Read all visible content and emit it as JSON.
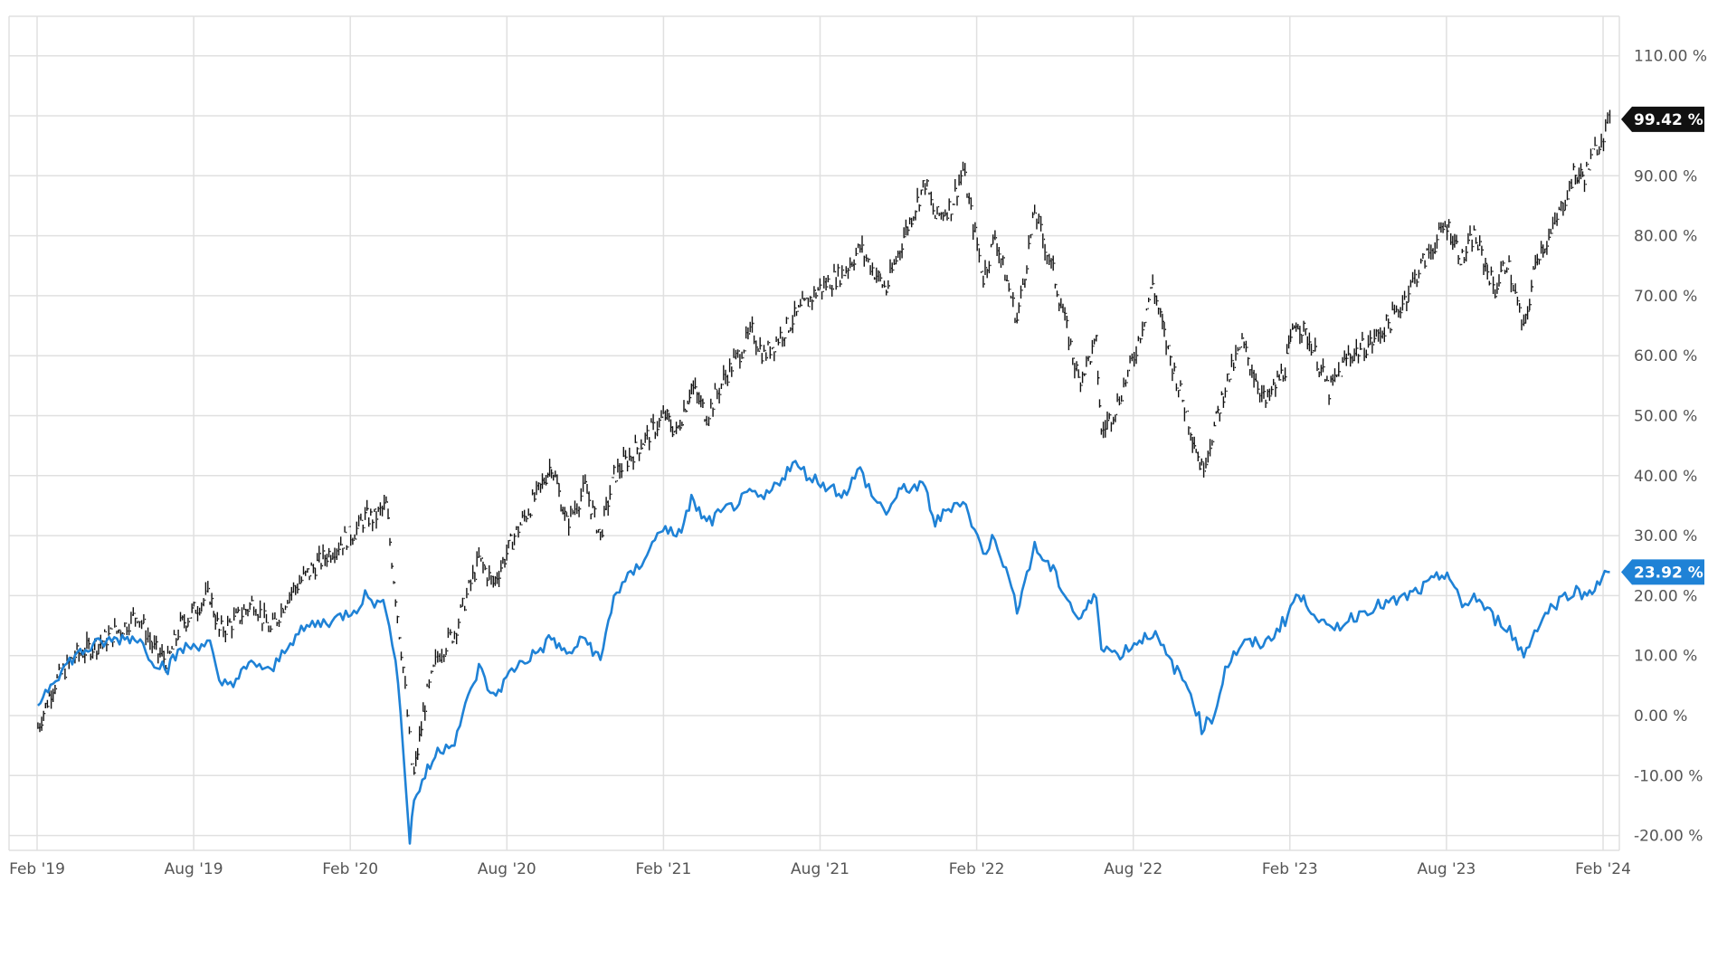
{
  "chart_data": {
    "type": "line",
    "x_ticks": [
      "Feb '19",
      "Aug '19",
      "Feb '20",
      "Aug '20",
      "Feb '21",
      "Aug '21",
      "Feb '22",
      "Aug '22",
      "Feb '23",
      "Aug '23",
      "Feb '24"
    ],
    "y_ticks": [
      "110.00 %",
      "90.00 %",
      "80.00 %",
      "70.00 %",
      "60.00 %",
      "50.00 %",
      "40.00 %",
      "30.00 %",
      "20.00 %",
      "10.00 %",
      "0.00 %",
      "-10.00 %",
      "-20.00 %"
    ],
    "ylim": [
      -20,
      110
    ],
    "grid": true,
    "series": [
      {
        "color": "#111111",
        "style": "ohlc",
        "last_label": "99.42 %",
        "points": [
          [
            "2019-01-02",
            -2
          ],
          [
            "2019-01-20",
            5
          ],
          [
            "2019-02-15",
            10
          ],
          [
            "2019-03-15",
            12
          ],
          [
            "2019-04-15",
            15
          ],
          [
            "2019-04-30",
            17
          ],
          [
            "2019-05-20",
            11
          ],
          [
            "2019-06-05",
            9
          ],
          [
            "2019-06-20",
            15
          ],
          [
            "2019-07-15",
            19
          ],
          [
            "2019-07-25",
            20
          ],
          [
            "2019-08-05",
            14
          ],
          [
            "2019-08-25",
            16
          ],
          [
            "2019-09-15",
            19
          ],
          [
            "2019-10-05",
            14
          ],
          [
            "2019-10-25",
            20
          ],
          [
            "2019-11-20",
            24
          ],
          [
            "2019-12-20",
            28
          ],
          [
            "2020-01-15",
            31
          ],
          [
            "2020-01-25",
            33
          ],
          [
            "2020-02-05",
            33
          ],
          [
            "2020-02-19",
            35
          ],
          [
            "2020-03-01",
            20
          ],
          [
            "2020-03-10",
            8
          ],
          [
            "2020-03-20",
            -8
          ],
          [
            "2020-03-23",
            -10
          ],
          [
            "2020-04-05",
            2
          ],
          [
            "2020-04-20",
            10
          ],
          [
            "2020-05-10",
            14
          ],
          [
            "2020-06-08",
            26
          ],
          [
            "2020-06-25",
            22
          ],
          [
            "2020-07-20",
            30
          ],
          [
            "2020-08-20",
            38
          ],
          [
            "2020-09-02",
            42
          ],
          [
            "2020-09-20",
            32
          ],
          [
            "2020-10-12",
            38
          ],
          [
            "2020-10-30",
            30
          ],
          [
            "2020-11-15",
            40
          ],
          [
            "2020-12-15",
            45
          ],
          [
            "2021-01-15",
            50
          ],
          [
            "2021-01-28",
            47
          ],
          [
            "2021-02-15",
            55
          ],
          [
            "2021-03-05",
            50
          ],
          [
            "2021-03-25",
            56
          ],
          [
            "2021-04-28",
            64
          ],
          [
            "2021-05-12",
            60
          ],
          [
            "2021-06-15",
            66
          ],
          [
            "2021-07-15",
            71
          ],
          [
            "2021-08-15",
            74
          ],
          [
            "2021-09-03",
            78
          ],
          [
            "2021-09-20",
            74
          ],
          [
            "2021-10-04",
            71
          ],
          [
            "2021-10-25",
            80
          ],
          [
            "2021-11-19",
            89
          ],
          [
            "2021-12-01",
            83
          ],
          [
            "2021-12-20",
            85
          ],
          [
            "2022-01-03",
            91
          ],
          [
            "2022-01-27",
            73
          ],
          [
            "2022-02-10",
            80
          ],
          [
            "2022-03-08",
            66
          ],
          [
            "2022-03-29",
            84
          ],
          [
            "2022-04-20",
            74
          ],
          [
            "2022-05-20",
            56
          ],
          [
            "2022-06-10",
            62
          ],
          [
            "2022-06-16",
            47
          ],
          [
            "2022-07-05",
            52
          ],
          [
            "2022-07-25",
            60
          ],
          [
            "2022-08-16",
            72
          ],
          [
            "2022-09-01",
            62
          ],
          [
            "2022-09-30",
            48
          ],
          [
            "2022-10-13",
            41
          ],
          [
            "2022-10-28",
            48
          ],
          [
            "2022-11-10",
            55
          ],
          [
            "2022-11-30",
            62
          ],
          [
            "2022-12-28",
            52
          ],
          [
            "2023-01-20",
            58
          ],
          [
            "2023-02-02",
            66
          ],
          [
            "2023-02-20",
            62
          ],
          [
            "2023-03-13",
            54
          ],
          [
            "2023-04-05",
            60
          ],
          [
            "2023-05-01",
            62
          ],
          [
            "2023-06-01",
            67
          ],
          [
            "2023-06-30",
            75
          ],
          [
            "2023-07-31",
            82
          ],
          [
            "2023-08-18",
            76
          ],
          [
            "2023-09-01",
            80
          ],
          [
            "2023-09-26",
            71
          ],
          [
            "2023-10-10",
            76
          ],
          [
            "2023-10-30",
            64
          ],
          [
            "2023-11-15",
            77
          ],
          [
            "2023-12-01",
            80
          ],
          [
            "2023-12-28",
            90
          ],
          [
            "2024-01-10",
            90
          ],
          [
            "2024-01-25",
            95
          ],
          [
            "2024-02-09",
            99.42
          ]
        ]
      },
      {
        "color": "#1f82d6",
        "style": "line",
        "last_label": "23.92 %",
        "points": [
          [
            "2019-01-02",
            2
          ],
          [
            "2019-01-20",
            6
          ],
          [
            "2019-02-15",
            10
          ],
          [
            "2019-03-15",
            12
          ],
          [
            "2019-04-15",
            13
          ],
          [
            "2019-04-30",
            13
          ],
          [
            "2019-05-20",
            9
          ],
          [
            "2019-06-05",
            8
          ],
          [
            "2019-06-20",
            11
          ],
          [
            "2019-07-15",
            12
          ],
          [
            "2019-07-25",
            12
          ],
          [
            "2019-08-05",
            5
          ],
          [
            "2019-08-25",
            6
          ],
          [
            "2019-09-15",
            9
          ],
          [
            "2019-10-05",
            7
          ],
          [
            "2019-10-25",
            12
          ],
          [
            "2019-11-20",
            15
          ],
          [
            "2019-12-20",
            16
          ],
          [
            "2020-01-15",
            18
          ],
          [
            "2020-01-25",
            20
          ],
          [
            "2020-02-05",
            19
          ],
          [
            "2020-02-19",
            18
          ],
          [
            "2020-03-01",
            10
          ],
          [
            "2020-03-10",
            -5
          ],
          [
            "2020-03-18",
            -21
          ],
          [
            "2020-03-23",
            -14
          ],
          [
            "2020-04-05",
            -10
          ],
          [
            "2020-04-20",
            -6
          ],
          [
            "2020-05-10",
            -4
          ],
          [
            "2020-06-08",
            8
          ],
          [
            "2020-06-25",
            3
          ],
          [
            "2020-07-20",
            8
          ],
          [
            "2020-08-20",
            11
          ],
          [
            "2020-09-02",
            13
          ],
          [
            "2020-09-20",
            10
          ],
          [
            "2020-10-12",
            13
          ],
          [
            "2020-10-30",
            9
          ],
          [
            "2020-11-15",
            20
          ],
          [
            "2020-12-15",
            25
          ],
          [
            "2021-01-15",
            32
          ],
          [
            "2021-01-28",
            29
          ],
          [
            "2021-02-15",
            36
          ],
          [
            "2021-03-05",
            32
          ],
          [
            "2021-03-25",
            34
          ],
          [
            "2021-04-28",
            37
          ],
          [
            "2021-05-12",
            36
          ],
          [
            "2021-06-15",
            42
          ],
          [
            "2021-07-15",
            39
          ],
          [
            "2021-08-15",
            37
          ],
          [
            "2021-09-03",
            41
          ],
          [
            "2021-09-20",
            36
          ],
          [
            "2021-10-04",
            34
          ],
          [
            "2021-10-25",
            38
          ],
          [
            "2021-11-19",
            38
          ],
          [
            "2021-12-01",
            32
          ],
          [
            "2021-12-20",
            35
          ],
          [
            "2022-01-03",
            36
          ],
          [
            "2022-01-27",
            27
          ],
          [
            "2022-02-10",
            30
          ],
          [
            "2022-03-08",
            18
          ],
          [
            "2022-03-29",
            28
          ],
          [
            "2022-04-20",
            24
          ],
          [
            "2022-05-20",
            16
          ],
          [
            "2022-06-10",
            20
          ],
          [
            "2022-06-16",
            12
          ],
          [
            "2022-07-05",
            10
          ],
          [
            "2022-07-25",
            12
          ],
          [
            "2022-08-16",
            14
          ],
          [
            "2022-09-01",
            10
          ],
          [
            "2022-09-30",
            4
          ],
          [
            "2022-10-13",
            -2
          ],
          [
            "2022-10-28",
            0
          ],
          [
            "2022-11-10",
            8
          ],
          [
            "2022-11-30",
            12
          ],
          [
            "2022-12-28",
            12
          ],
          [
            "2023-01-20",
            16
          ],
          [
            "2023-02-02",
            20
          ],
          [
            "2023-02-20",
            18
          ],
          [
            "2023-03-13",
            14
          ],
          [
            "2023-04-05",
            16
          ],
          [
            "2023-05-01",
            18
          ],
          [
            "2023-06-01",
            19
          ],
          [
            "2023-06-30",
            21
          ],
          [
            "2023-07-31",
            24
          ],
          [
            "2023-08-18",
            18
          ],
          [
            "2023-09-01",
            20
          ],
          [
            "2023-09-26",
            16
          ],
          [
            "2023-10-10",
            15
          ],
          [
            "2023-10-30",
            10
          ],
          [
            "2023-11-15",
            15
          ],
          [
            "2023-12-01",
            18
          ],
          [
            "2023-12-28",
            21
          ],
          [
            "2024-01-10",
            20
          ],
          [
            "2024-01-25",
            22
          ],
          [
            "2024-02-09",
            23.92
          ]
        ]
      }
    ]
  }
}
